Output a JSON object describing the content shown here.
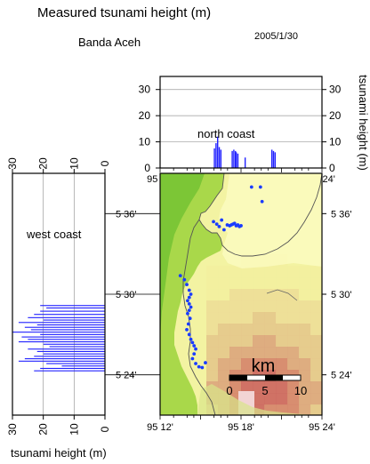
{
  "header": {
    "title": "Measured tsunami height (m)",
    "place": "Banda Aceh",
    "date": "2005/1/30"
  },
  "chart_data": [
    {
      "type": "bar",
      "name": "north-coast",
      "title": "north coast",
      "ylabel": "tsunami height (m)",
      "ylim": [
        0,
        35
      ],
      "yticks": [
        "0",
        "10",
        "20",
        "30"
      ],
      "xlim": [
        95.2,
        95.4
      ],
      "xticks": [
        "95 12'",
        "95 18'",
        "95 24'"
      ],
      "grid": true,
      "orientation": "vertical",
      "bar_color": "#2020ff",
      "x": [
        95.267,
        95.269,
        95.271,
        95.273,
        95.275,
        95.289,
        95.291,
        95.293,
        95.294,
        95.296,
        95.305,
        95.338,
        95.34,
        95.342
      ],
      "values": [
        7.5,
        9.5,
        12,
        8,
        7,
        6.5,
        7,
        6.5,
        6,
        5.5,
        4,
        7,
        6.5,
        6
      ]
    },
    {
      "type": "bar",
      "name": "west-coast",
      "title": "west coast",
      "xlabel": "tsunami height (m)",
      "xlim": [
        30,
        0
      ],
      "xticks": [
        "30",
        "20",
        "10",
        "0"
      ],
      "ylim": [
        5.35,
        5.65
      ],
      "yticks": [
        "5 24'",
        "5 30'",
        "5 36'"
      ],
      "grid": true,
      "orientation": "horizontal",
      "bar_color": "#2020ff",
      "y": [
        5.486,
        5.483,
        5.479,
        5.475,
        5.471,
        5.468,
        5.465,
        5.462,
        5.459,
        5.456,
        5.453,
        5.45,
        5.447,
        5.444,
        5.441,
        5.438,
        5.435,
        5.432,
        5.429,
        5.426,
        5.423,
        5.42,
        5.417,
        5.414,
        5.411,
        5.408,
        5.405
      ],
      "values": [
        21,
        19,
        21,
        23,
        25,
        20,
        28,
        22,
        26,
        24,
        30,
        21,
        27,
        25,
        28,
        20,
        18,
        25,
        22,
        20,
        23,
        26,
        28,
        19,
        14,
        21,
        23
      ]
    },
    {
      "type": "scatter",
      "name": "survey-map",
      "xlim": [
        95.2,
        95.4
      ],
      "ylim": [
        5.35,
        5.65
      ],
      "xticks": [
        "95 12'",
        "95 18'",
        "95 24'"
      ],
      "yticks": [
        "5 24'",
        "5 30'",
        "5 36'"
      ],
      "point_color": "#1a3cff",
      "scale_bar": {
        "unit": "km",
        "ticks": [
          "0",
          "5",
          "10"
        ]
      },
      "points": [
        [
          95.266,
          5.59
        ],
        [
          95.27,
          5.587
        ],
        [
          95.273,
          5.584
        ],
        [
          95.276,
          5.592
        ],
        [
          95.279,
          5.58
        ],
        [
          95.283,
          5.586
        ],
        [
          95.286,
          5.585
        ],
        [
          95.288,
          5.586
        ],
        [
          95.29,
          5.587
        ],
        [
          95.292,
          5.588
        ],
        [
          95.294,
          5.585
        ],
        [
          95.296,
          5.586
        ],
        [
          95.298,
          5.584
        ],
        [
          95.3,
          5.585
        ],
        [
          95.313,
          5.633
        ],
        [
          95.324,
          5.633
        ],
        [
          95.326,
          5.615
        ],
        [
          95.225,
          5.523
        ],
        [
          95.23,
          5.518
        ],
        [
          95.233,
          5.512
        ],
        [
          95.236,
          5.505
        ],
        [
          95.238,
          5.5
        ],
        [
          95.236,
          5.496
        ],
        [
          95.234,
          5.492
        ],
        [
          95.236,
          5.488
        ],
        [
          95.238,
          5.484
        ],
        [
          95.236,
          5.48
        ],
        [
          95.234,
          5.476
        ],
        [
          95.237,
          5.47
        ],
        [
          95.235,
          5.463
        ],
        [
          95.233,
          5.456
        ],
        [
          95.236,
          5.45
        ],
        [
          95.238,
          5.444
        ],
        [
          95.24,
          5.44
        ],
        [
          95.242,
          5.436
        ],
        [
          95.244,
          5.432
        ],
        [
          95.242,
          5.426
        ],
        [
          95.24,
          5.42
        ],
        [
          95.244,
          5.414
        ],
        [
          95.248,
          5.41
        ],
        [
          95.252,
          5.409
        ],
        [
          95.256,
          5.415
        ]
      ]
    }
  ]
}
